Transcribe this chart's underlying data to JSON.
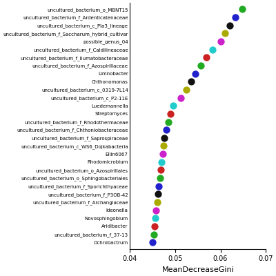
{
  "labels": [
    "uncultured_bacterium_o_MBNT15",
    "uncultured_bacterium_f_Ardenticatenaceae",
    "uncultured_bacterium_c_Pla3_lineage",
    "uncultured_bacterium_f_Saccharum_hybrid_cultivar",
    "possible_genus_04",
    "uncultured_bacterium_f_Caldilineaceae",
    "uncultured_bacterium_f_Ilumatobacteraceae",
    "uncultured_bacterium_f_Azospirillaceae",
    "Limnobacter",
    "Chthonomonas",
    "uncultured_bacterium_c_0319-7L14",
    "uncultured_bacterium_c_P2-11E",
    "Luedemannella",
    "Streptomyces",
    "uncultured_bacterium_f_Rhodothermaceae",
    "uncultured_bacterium_f_Chthoniobacteraceae",
    "uncultured_bacterium_f_Saprospiraceae",
    "uncultured_bacterium_c_WS6_Dojkabacteria",
    "Ellin6067",
    "Rhodomicrobium",
    "uncultured_bacterium_o_Azospirillales",
    "uncultured_bacterium_o_Sphingobacteriales",
    "uncultured_bacterium_f_Sporichthyaceae",
    "uncultured_bacterium_f_P3OB-42",
    "uncultured_bacterium_f_Archangiaceae",
    "Ideonella",
    "Novosphingobium",
    "Aridibacter",
    "uncultured_bacterium_f_37-13",
    "Ochrobactrum"
  ],
  "values": [
    0.0648,
    0.0632,
    0.062,
    0.061,
    0.06,
    0.0582,
    0.0568,
    0.0556,
    0.0544,
    0.0535,
    0.0524,
    0.0512,
    0.0496,
    0.049,
    0.0485,
    0.048,
    0.0476,
    0.0474,
    0.0472,
    0.047,
    0.0468,
    0.0466,
    0.0464,
    0.0462,
    0.046,
    0.0458,
    0.0456,
    0.0454,
    0.0452,
    0.045
  ],
  "colors": [
    "#22aa22",
    "#2222cc",
    "#111111",
    "#aaaa00",
    "#cc22cc",
    "#22cccc",
    "#cc2222",
    "#22aa22",
    "#2222cc",
    "#111111",
    "#aaaa00",
    "#cc22cc",
    "#22cccc",
    "#cc2222",
    "#22aa22",
    "#2222cc",
    "#111111",
    "#aaaa00",
    "#cc22cc",
    "#22cccc",
    "#cc2222",
    "#22aa22",
    "#2222cc",
    "#111111",
    "#aaaa00",
    "#cc22cc",
    "#22cccc",
    "#cc2222",
    "#22aa22",
    "#2222cc"
  ],
  "xlabel": "MeanDecreaseGini",
  "xlim": [
    0.04,
    0.07
  ],
  "xticks": [
    0.04,
    0.05,
    0.06,
    0.07
  ],
  "dot_size": 55,
  "figsize": [
    4.0,
    4.0
  ],
  "dpi": 100,
  "label_fontsize": 5.0,
  "xlabel_fontsize": 8,
  "xtick_fontsize": 7
}
